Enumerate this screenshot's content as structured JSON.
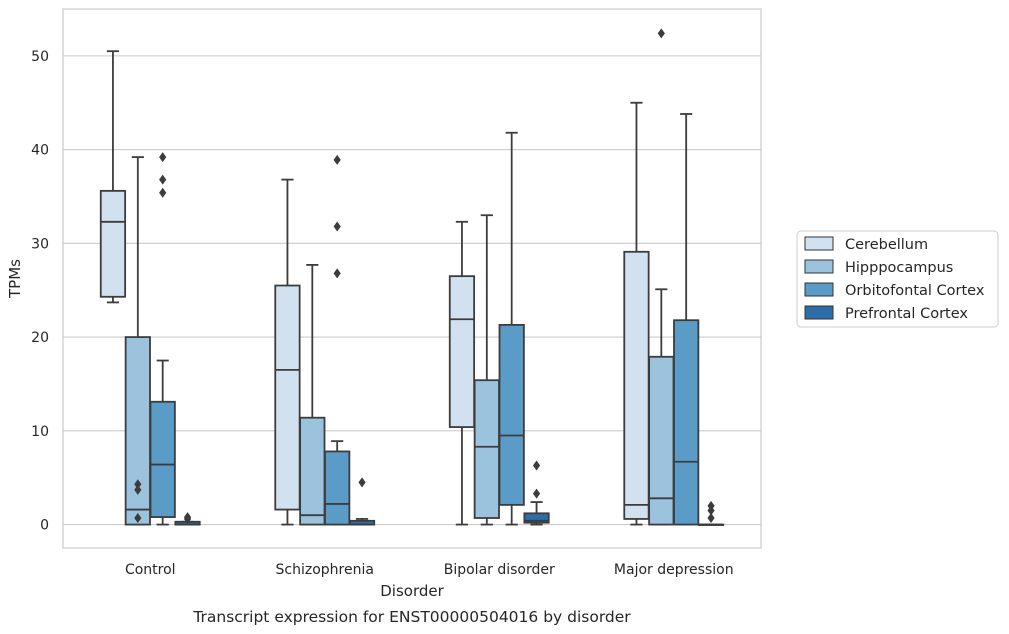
{
  "chart_data": {
    "type": "box",
    "title": "",
    "caption": "Transcript expression for ENST00000504016 by disorder",
    "xlabel": "Disorder",
    "ylabel": "TPMs",
    "categories": [
      "Control",
      "Schizophrenia",
      "Bipolar disorder",
      "Major depression"
    ],
    "ylim": [
      -2.5,
      55
    ],
    "yticks": [
      0,
      10,
      20,
      30,
      40,
      50
    ],
    "grid": "horizontal",
    "legend_position": "right",
    "series": [
      {
        "name": "Cerebellum",
        "color": "#d1e1f0",
        "boxes": [
          {
            "whislo": 23.7,
            "q1": 24.3,
            "med": 32.3,
            "q3": 35.6,
            "whishi": 50.5,
            "fliers": []
          },
          {
            "whislo": 0.0,
            "q1": 1.6,
            "med": 16.5,
            "q3": 25.5,
            "whishi": 36.8,
            "fliers": []
          },
          {
            "whislo": 0.0,
            "q1": 10.4,
            "med": 21.9,
            "q3": 26.5,
            "whishi": 32.3,
            "fliers": []
          },
          {
            "whislo": 0.0,
            "q1": 0.6,
            "med": 2.1,
            "q3": 29.1,
            "whishi": 45.0,
            "fliers": []
          }
        ]
      },
      {
        "name": "Hipppocampus",
        "color": "#9bc3de",
        "boxes": [
          {
            "whislo": 0.0,
            "q1": 0.0,
            "med": 1.6,
            "q3": 20.0,
            "whishi": 39.2,
            "fliers": [
              4.3,
              3.7,
              0.7
            ]
          },
          {
            "whislo": 0.0,
            "q1": 0.0,
            "med": 1.0,
            "q3": 11.4,
            "whishi": 27.7,
            "fliers": []
          },
          {
            "whislo": 0.0,
            "q1": 0.7,
            "med": 8.3,
            "q3": 15.4,
            "whishi": 33.0,
            "fliers": []
          },
          {
            "whislo": 0.0,
            "q1": 0.0,
            "med": 2.8,
            "q3": 17.9,
            "whishi": 25.1,
            "fliers": [
              52.4
            ]
          }
        ]
      },
      {
        "name": "Orbitofontal Cortex",
        "color": "#5b9bc7",
        "boxes": [
          {
            "whislo": 0.0,
            "q1": 0.8,
            "med": 6.4,
            "q3": 13.1,
            "whishi": 17.5,
            "fliers": [
              39.2,
              36.8,
              35.4
            ]
          },
          {
            "whislo": 0.0,
            "q1": 0.0,
            "med": 2.2,
            "q3": 7.8,
            "whishi": 8.9,
            "fliers": [
              38.9,
              31.8,
              26.8
            ]
          },
          {
            "whislo": 0.0,
            "q1": 2.1,
            "med": 9.5,
            "q3": 21.3,
            "whishi": 41.8,
            "fliers": []
          },
          {
            "whislo": 0.0,
            "q1": 0.0,
            "med": 6.7,
            "q3": 21.8,
            "whishi": 43.8,
            "fliers": []
          }
        ]
      },
      {
        "name": "Prefrontal Cortex",
        "color": "#2d6ea8",
        "boxes": [
          {
            "whislo": 0.0,
            "q1": 0.0,
            "med": 0.0,
            "q3": 0.3,
            "whishi": 0.3,
            "fliers": [
              0.8,
              0.6
            ]
          },
          {
            "whislo": 0.0,
            "q1": 0.0,
            "med": 0.0,
            "q3": 0.4,
            "whishi": 0.6,
            "fliers": [
              4.5
            ]
          },
          {
            "whislo": 0.0,
            "q1": 0.2,
            "med": 0.4,
            "q3": 1.2,
            "whishi": 2.4,
            "fliers": [
              6.3,
              3.3
            ]
          },
          {
            "whislo": 0.0,
            "q1": 0.0,
            "med": 0.0,
            "q3": 0.0,
            "whishi": 0.0,
            "fliers": [
              2.0,
              1.5,
              0.7
            ]
          }
        ]
      }
    ]
  }
}
